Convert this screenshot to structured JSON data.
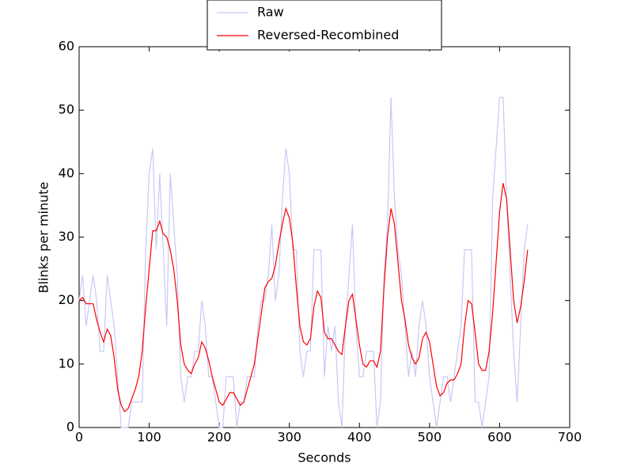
{
  "chart_data": {
    "type": "line",
    "x_label": "Seconds",
    "y_label": "Blinks per minute",
    "x": [
      0,
      5,
      10,
      20,
      25,
      30,
      35,
      40,
      45,
      50,
      55,
      60,
      65,
      70,
      75,
      80,
      85,
      90,
      95,
      100,
      105,
      110,
      115,
      120,
      125,
      130,
      135,
      140,
      145,
      150,
      155,
      160,
      165,
      170,
      175,
      180,
      185,
      190,
      195,
      200,
      205,
      210,
      215,
      220,
      225,
      230,
      235,
      240,
      245,
      250,
      255,
      260,
      265,
      270,
      275,
      280,
      285,
      290,
      295,
      300,
      305,
      310,
      315,
      320,
      325,
      330,
      335,
      340,
      345,
      350,
      355,
      360,
      365,
      370,
      375,
      380,
      385,
      390,
      395,
      400,
      405,
      410,
      415,
      420,
      425,
      430,
      435,
      440,
      445,
      450,
      455,
      460,
      465,
      470,
      475,
      480,
      485,
      490,
      495,
      500,
      505,
      510,
      515,
      520,
      525,
      530,
      535,
      540,
      545,
      550,
      555,
      560,
      565,
      570,
      575,
      580,
      585,
      590,
      595,
      600,
      605,
      610,
      615,
      620,
      625,
      630,
      635,
      640
    ],
    "series": [
      {
        "name": "Raw",
        "color": "#c8c8f8",
        "values": [
          20,
          24,
          16,
          24,
          20,
          12,
          12,
          24,
          20,
          16,
          8,
          0,
          0,
          0,
          4,
          4,
          4,
          4,
          28,
          40,
          44,
          28,
          40,
          28,
          16,
          40,
          32,
          24,
          8,
          4,
          8,
          8,
          12,
          12,
          20,
          16,
          8,
          8,
          4,
          0,
          0,
          8,
          8,
          8,
          0,
          4,
          4,
          8,
          8,
          8,
          16,
          20,
          20,
          24,
          32,
          20,
          24,
          36,
          44,
          40,
          28,
          28,
          12,
          8,
          12,
          12,
          28,
          28,
          28,
          8,
          16,
          12,
          16,
          4,
          0,
          16,
          24,
          32,
          16,
          8,
          8,
          12,
          12,
          12,
          0,
          4,
          24,
          32,
          52,
          36,
          28,
          24,
          16,
          8,
          12,
          8,
          16,
          20,
          16,
          8,
          4,
          0,
          4,
          8,
          8,
          4,
          8,
          12,
          16,
          28,
          28,
          28,
          4,
          4,
          0,
          4,
          8,
          36,
          44,
          52,
          52,
          36,
          24,
          12,
          4,
          16,
          28,
          32
        ]
      },
      {
        "name": "Reversed-Recombined",
        "color": "#ff0000",
        "values": [
          20,
          20.5,
          19.5,
          19.5,
          17,
          15,
          13.5,
          15.5,
          14.5,
          11,
          6,
          3.5,
          2.5,
          3,
          4.5,
          6,
          8,
          12,
          19,
          25,
          31,
          31,
          32.5,
          30.5,
          30,
          28,
          25,
          20,
          13,
          10,
          9,
          8.5,
          10,
          11,
          13.5,
          12.5,
          10.5,
          8,
          6,
          4,
          3.5,
          4.5,
          5.5,
          5.5,
          4.5,
          3.5,
          4,
          6,
          8,
          10,
          14,
          18,
          22,
          23,
          23.5,
          25.5,
          29,
          32,
          34.5,
          33,
          29,
          22,
          16,
          13.5,
          13,
          14,
          19,
          21.5,
          20.5,
          15,
          14,
          14,
          13,
          12,
          11.5,
          16,
          20,
          21,
          17,
          13,
          10,
          9.5,
          10.5,
          10.5,
          9.5,
          12,
          22,
          30,
          34.5,
          32,
          26,
          20,
          17,
          13,
          11,
          10,
          11,
          14,
          15,
          13.5,
          10,
          6.5,
          5,
          5.5,
          7,
          7.5,
          7.5,
          8.5,
          10,
          16,
          20,
          19.5,
          15,
          10,
          9,
          9,
          12,
          18,
          26,
          34,
          38.5,
          36,
          28,
          20,
          16.5,
          19,
          23,
          28
        ]
      }
    ],
    "xlim": [
      0,
      700
    ],
    "xticks": [
      0,
      100,
      200,
      300,
      400,
      500,
      600,
      700
    ],
    "ylim": [
      0,
      60
    ],
    "yticks": [
      0,
      10,
      20,
      30,
      40,
      50,
      60
    ],
    "legend": "upper center"
  }
}
